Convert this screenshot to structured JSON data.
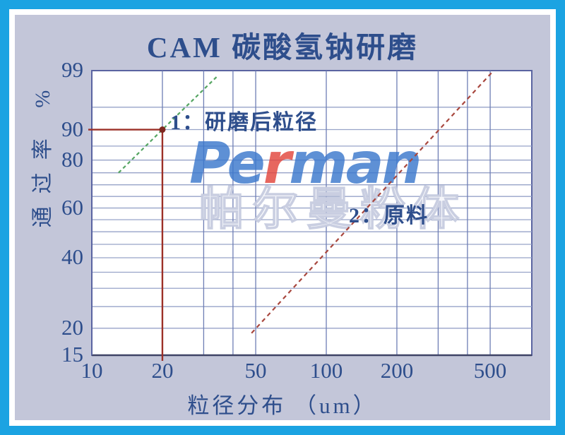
{
  "frame": {
    "border_color": "#1ba3e2",
    "matte_color": "#ffffff",
    "canvas_color": "#c3c6d9",
    "text_color": "#2e4e8c"
  },
  "title": {
    "text": "CAM 碳酸氢钠研磨"
  },
  "watermark": {
    "logo_parts": [
      {
        "text": "Pe",
        "color": "#3b78cd"
      },
      {
        "text": "r",
        "color": "#e2463d"
      },
      {
        "text": "man",
        "color": "#3b78cd"
      }
    ],
    "cn_text": "帕尔曼粉体"
  },
  "chart_data": {
    "type": "line",
    "title": "CAM 碳酸氢钠研磨",
    "xlabel": "粒径分布 （um）",
    "ylabel": "通过率 %",
    "x_scale": "log10",
    "y_scale": "rosin-rammler-probability",
    "xlim": [
      10,
      760
    ],
    "ylim": [
      15,
      99
    ],
    "x_ticks": [
      10,
      20,
      50,
      100,
      200,
      500
    ],
    "x_gridlines": [
      20,
      30,
      40,
      50,
      100,
      200,
      300,
      400,
      500
    ],
    "y_ticks": [
      99,
      90,
      80,
      60,
      40,
      20,
      15
    ],
    "y_gridlines": [
      95,
      90,
      85,
      80,
      75,
      70,
      65,
      60,
      55,
      50,
      45,
      40,
      35,
      30,
      25,
      20
    ],
    "grid_on": true,
    "plot_bg": "#ffffff",
    "plot_border_color": "#5a64a1",
    "axis_line_color": "#3f4466",
    "h_grid_color": "#97a3c8",
    "v_grid_color": "#6e7eb5",
    "series": [
      {
        "name": "1：研磨后粒径",
        "color": "#55a562",
        "dash": "5 4",
        "points": [
          [
            13,
            75
          ],
          [
            20,
            90
          ],
          [
            34.5,
            98.7
          ]
        ]
      },
      {
        "name": "2：原料",
        "color": "#a8473e",
        "dash": "6 5",
        "points": [
          [
            48,
            19
          ],
          [
            517,
            99
          ]
        ]
      }
    ],
    "marker": {
      "x": 20,
      "y": 90,
      "color": "#7e2820",
      "note": "90% passing at 20 um"
    },
    "crosshair": {
      "x": 20,
      "y": 90,
      "color": "#9c3028"
    }
  }
}
